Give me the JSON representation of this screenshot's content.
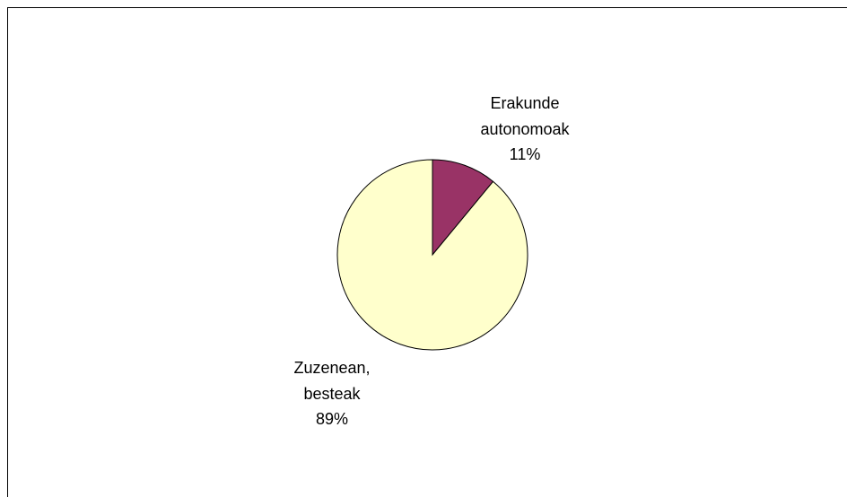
{
  "chart_data": {
    "type": "pie",
    "categories": [
      "Erakunde autonomoak",
      "Zuzenean, besteak"
    ],
    "values": [
      11,
      89
    ],
    "value_labels": [
      "11%",
      "89%"
    ],
    "colors": [
      "#993366",
      "#ffffcc"
    ]
  }
}
